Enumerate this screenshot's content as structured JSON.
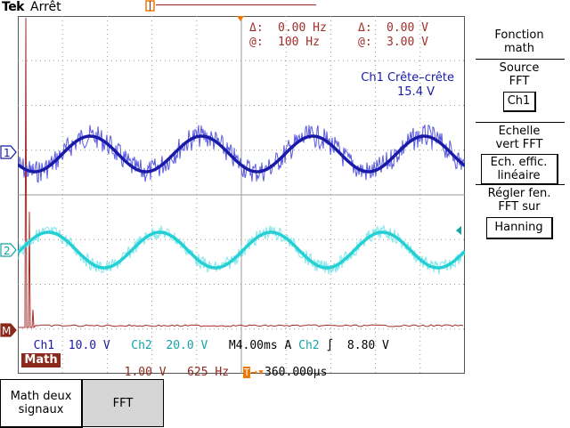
{
  "header": {
    "brand": "Tek",
    "acq_state": "Arrêt"
  },
  "cursor_readout": {
    "row1": {
      "delta1_label": "Δ:",
      "delta1_value": "0.00 Hz",
      "delta2_label": "Δ:",
      "delta2_value": "0.00 V"
    },
    "row2": {
      "at1_label": "@:",
      "at1_value": "100 Hz",
      "at2_label": "@:",
      "at2_value": "3.00 V"
    }
  },
  "measurement": {
    "label": "Ch1 Crête–crête",
    "value": "15.4 V"
  },
  "markers": {
    "ch1": "1",
    "ch2": "2",
    "math": "M"
  },
  "bottom_readout": {
    "ch1_label": "Ch1",
    "ch1_scale": "10.0 V",
    "ch2_label": "Ch2",
    "ch2_scale": "20.0 V",
    "timebase": "M4.00ms",
    "trig_mode": "A",
    "trig_src": "Ch2",
    "trig_level": "8.80 V"
  },
  "math_readout": {
    "badge": "Math",
    "scale": "1.00 V",
    "freq": "625 Hz",
    "trig_offset": "360.000µs"
  },
  "side_menu": {
    "title_line1": "Fonction",
    "title_line2": "math",
    "source_line1": "Source",
    "source_line2": "FFT",
    "source_value": "Ch1",
    "scale_line1": "Echelle",
    "scale_line2": "vert FFT",
    "scale_value_line1": "Ech. effic.",
    "scale_value_line2": "linéaire",
    "window_line1": "Régler fen.",
    "window_line2": "FFT sur",
    "window_value": "Hanning"
  },
  "bottom_menu": {
    "btn1_line1": "Math deux",
    "btn1_line2": "signaux",
    "btn2": "FFT"
  },
  "colors": {
    "ch1": "#1a1aa8",
    "ch2": "#15a3a7",
    "math": "#8b2a1c",
    "cursor": "#f07800",
    "grid": "#9a9a9a"
  }
}
